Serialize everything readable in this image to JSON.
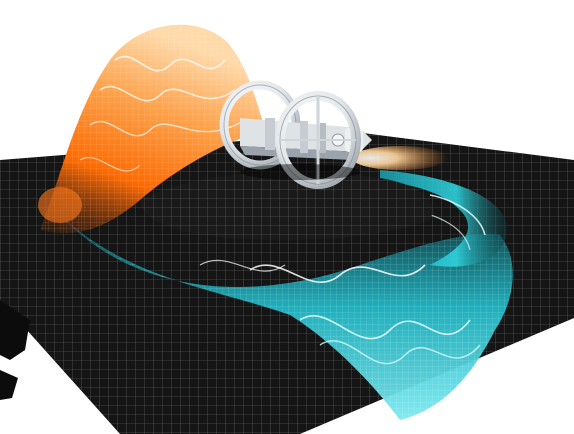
{
  "scene": {
    "subject": "warp-drive-spacecraft",
    "colors": {
      "background": "#ffffff",
      "sheet": "#141414",
      "grid_line": "#8a8a8a",
      "warm_glow": "#ff7a1a",
      "warm_core": "#ffc07a",
      "cool_glow": "#21c9d6",
      "cool_core": "#a8f4f8",
      "ship_hull": "#e9ecef",
      "ship_shadow": "#9aa3ab"
    }
  }
}
